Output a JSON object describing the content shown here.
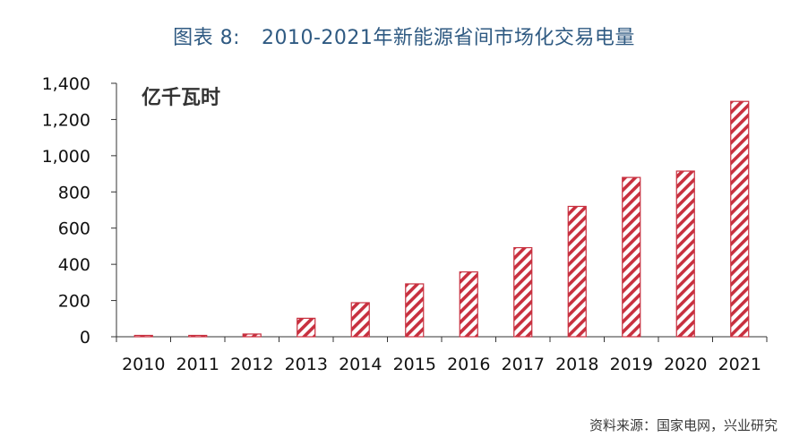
{
  "figure": {
    "number": "图表 8:",
    "title": "2010-2021年新能源省间市场化交易电量",
    "source": "资料来源：国家电网，兴业研究"
  },
  "colors": {
    "bar": "#c8303f",
    "title": "#2f5a82",
    "axis": "#333333"
  },
  "chart_data": {
    "type": "bar",
    "unit_label": "亿千瓦时",
    "categories": [
      "2010",
      "2011",
      "2012",
      "2013",
      "2014",
      "2015",
      "2016",
      "2017",
      "2018",
      "2019",
      "2020",
      "2021"
    ],
    "values": [
      2,
      3,
      15,
      102,
      188,
      292,
      358,
      492,
      720,
      880,
      915,
      1300
    ],
    "ylim": [
      0,
      1400
    ],
    "yticks": [
      0,
      200,
      400,
      600,
      800,
      1000,
      1200,
      1400
    ],
    "ytick_labels": [
      "0",
      "200",
      "400",
      "600",
      "800",
      "1,000",
      "1,200",
      "1,400"
    ],
    "pattern": "diagonal-hatch",
    "grid": false,
    "legend": "none"
  }
}
